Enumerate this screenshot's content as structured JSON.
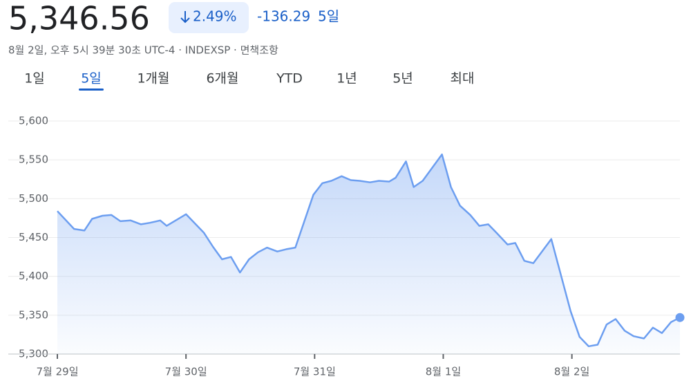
{
  "header": {
    "price": "5,346.56",
    "change_percent": "2.49%",
    "change": "-136.29",
    "period": "5일",
    "subtitle": "8월 2일, 오후 5시 39분 30초 UTC-4 · INDEXSP · 면책조항"
  },
  "tabs": {
    "items": [
      "1일",
      "5일",
      "1개월",
      "6개월",
      "YTD",
      "1년",
      "5년",
      "최대"
    ],
    "selected": 1
  },
  "chart_data": {
    "type": "line",
    "color": "#6c9ef0",
    "x": [
      0,
      0.13,
      0.21,
      0.27,
      0.35,
      0.42,
      0.49,
      0.57,
      0.65,
      0.72,
      0.8,
      0.85,
      1.0,
      1.14,
      1.21,
      1.28,
      1.35,
      1.42,
      1.49,
      1.56,
      1.63,
      1.71,
      1.78,
      1.85,
      1.99,
      2.06,
      2.13,
      2.21,
      2.28,
      2.35,
      2.43,
      2.5,
      2.58,
      2.63,
      2.71,
      2.77,
      2.84,
      2.99,
      3.06,
      3.13,
      3.21,
      3.28,
      3.35,
      3.42,
      3.5,
      3.56,
      3.63,
      3.7,
      3.84,
      3.99,
      4.06,
      4.13,
      4.2,
      4.27,
      4.34,
      4.41,
      4.48,
      4.56,
      4.63,
      4.7,
      4.77,
      4.84
    ],
    "values": [
      5484,
      5461,
      5459,
      5474,
      5478,
      5479,
      5471,
      5472,
      5467,
      5469,
      5472,
      5465,
      5480,
      5456,
      5438,
      5422,
      5425,
      5405,
      5422,
      5431,
      5437,
      5432,
      5435,
      5437,
      5505,
      5520,
      5523,
      5529,
      5524,
      5523,
      5521,
      5523,
      5522,
      5527,
      5548,
      5515,
      5523,
      5557,
      5515,
      5491,
      5479,
      5465,
      5467,
      5455,
      5441,
      5443,
      5420,
      5417,
      5448,
      5355,
      5322,
      5310,
      5312,
      5338,
      5345,
      5330,
      5323,
      5320,
      5334,
      5327,
      5341,
      5347
    ],
    "xlim": [
      0,
      4.84
    ],
    "xticks": [
      {
        "value": 0,
        "label": "7월 29일"
      },
      {
        "value": 1,
        "label": "7월 30일"
      },
      {
        "value": 2,
        "label": "7월 31일"
      },
      {
        "value": 3,
        "label": "8월 1일"
      },
      {
        "value": 4,
        "label": "8월 2일"
      }
    ],
    "ylim": [
      5300,
      5600
    ],
    "yticks": [
      {
        "value": 5300,
        "label": "5,300"
      },
      {
        "value": 5350,
        "label": "5,350"
      },
      {
        "value": 5400,
        "label": "5,400"
      },
      {
        "value": 5450,
        "label": "5,450"
      },
      {
        "value": 5500,
        "label": "5,500"
      },
      {
        "value": 5550,
        "label": "5,550"
      },
      {
        "value": 5600,
        "label": "5,600"
      }
    ],
    "grid": true
  }
}
